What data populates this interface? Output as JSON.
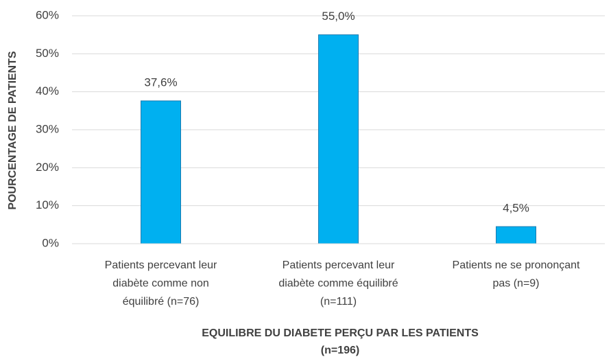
{
  "chart_data": {
    "type": "bar",
    "y_label": "POURCENTAGE DE PATIENTS",
    "x_label": [
      "EQUILIBRE DU DIABETE PERÇU PAR LES PATIENTS",
      "(n=196)"
    ],
    "categories": [
      "Patients percevant leur diabète comme non équilibré (n=76)",
      "Patients percevant leur diabète comme équilibré (n=111)",
      "Patients ne se prononçant pas (n=9)"
    ],
    "values": [
      37.6,
      55.0,
      4.5
    ],
    "value_labels": [
      "37,6%",
      "55,0%",
      "4,5%"
    ],
    "color": "#00b0f0",
    "ylim": [
      0,
      60
    ],
    "yticks": [
      {
        "value": 0,
        "label": "0%"
      },
      {
        "value": 10,
        "label": "10%"
      },
      {
        "value": 20,
        "label": "20%"
      },
      {
        "value": 30,
        "label": "30%"
      },
      {
        "value": 40,
        "label": "40%"
      },
      {
        "value": 50,
        "label": "50%"
      },
      {
        "value": 60,
        "label": "60%"
      }
    ],
    "grid": true
  }
}
